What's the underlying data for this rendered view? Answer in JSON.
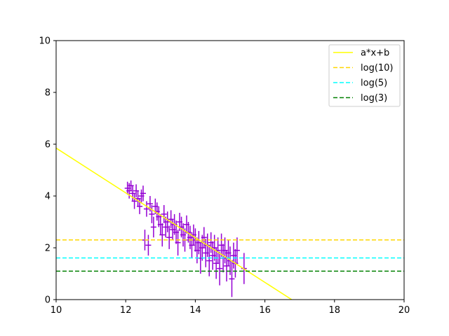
{
  "chart_data": {
    "type": "scatter",
    "title": "",
    "xlabel": "",
    "ylabel": "",
    "xlim": [
      10,
      20
    ],
    "ylim": [
      0,
      10
    ],
    "xticks": [
      "10",
      "12",
      "14",
      "16",
      "18",
      "20"
    ],
    "yticks": [
      "0",
      "2",
      "4",
      "6",
      "8",
      "10"
    ],
    "grid": false,
    "legend_placement": "top-right",
    "series": [
      {
        "name": "a*x+b",
        "kind": "line",
        "style": "solid",
        "color": "#ffff00",
        "x": [
          10,
          16.77
        ],
        "y": [
          5.85,
          0
        ]
      },
      {
        "name": "log(10)",
        "kind": "hline",
        "style": "dashed",
        "color": "#ffd700",
        "y": 2.303
      },
      {
        "name": "log(5)",
        "kind": "hline",
        "style": "dashed",
        "color": "#00ffff",
        "y": 1.609
      },
      {
        "name": "log(3)",
        "kind": "hline",
        "style": "dashed",
        "color": "#008000",
        "y": 1.099
      }
    ],
    "errorbar_points": {
      "color": "#9400d3",
      "points": [
        [
          12.05,
          4.3,
          0.25
        ],
        [
          12.1,
          4.2,
          0.3
        ],
        [
          12.15,
          4.4,
          0.2
        ],
        [
          12.2,
          4.1,
          0.3
        ],
        [
          12.25,
          3.8,
          0.3
        ],
        [
          12.3,
          4.2,
          0.25
        ],
        [
          12.35,
          3.9,
          0.3
        ],
        [
          12.4,
          3.6,
          0.3
        ],
        [
          12.45,
          4.0,
          0.25
        ],
        [
          12.5,
          4.1,
          0.3
        ],
        [
          12.55,
          2.3,
          0.4
        ],
        [
          12.6,
          3.5,
          0.3
        ],
        [
          12.65,
          2.1,
          0.4
        ],
        [
          12.7,
          3.7,
          0.3
        ],
        [
          12.75,
          3.3,
          0.35
        ],
        [
          12.8,
          2.8,
          0.4
        ],
        [
          12.85,
          3.6,
          0.3
        ],
        [
          12.9,
          3.4,
          0.35
        ],
        [
          12.95,
          3.2,
          0.4
        ],
        [
          13.0,
          2.9,
          0.4
        ],
        [
          13.05,
          2.5,
          0.45
        ],
        [
          13.1,
          3.3,
          0.35
        ],
        [
          13.15,
          2.8,
          0.4
        ],
        [
          13.2,
          3.0,
          0.4
        ],
        [
          13.25,
          2.4,
          0.45
        ],
        [
          13.3,
          3.1,
          0.35
        ],
        [
          13.35,
          2.7,
          0.4
        ],
        [
          13.4,
          2.9,
          0.4
        ],
        [
          13.45,
          2.6,
          0.45
        ],
        [
          13.5,
          2.2,
          0.5
        ],
        [
          13.55,
          3.0,
          0.35
        ],
        [
          13.6,
          2.8,
          0.4
        ],
        [
          13.65,
          2.5,
          0.45
        ],
        [
          13.7,
          2.3,
          0.45
        ],
        [
          13.75,
          2.9,
          0.35
        ],
        [
          13.8,
          2.6,
          0.4
        ],
        [
          13.85,
          2.4,
          0.45
        ],
        [
          13.9,
          2.1,
          0.5
        ],
        [
          13.95,
          2.5,
          0.4
        ],
        [
          14.0,
          2.3,
          0.45
        ],
        [
          14.05,
          1.9,
          0.5
        ],
        [
          14.1,
          2.2,
          0.45
        ],
        [
          14.15,
          1.6,
          0.6
        ],
        [
          14.2,
          2.0,
          0.5
        ],
        [
          14.25,
          2.4,
          0.4
        ],
        [
          14.3,
          1.8,
          0.55
        ],
        [
          14.35,
          2.1,
          0.45
        ],
        [
          14.4,
          1.5,
          0.6
        ],
        [
          14.45,
          2.2,
          0.4
        ],
        [
          14.5,
          1.7,
          0.55
        ],
        [
          14.55,
          2.0,
          0.5
        ],
        [
          14.6,
          1.4,
          0.6
        ],
        [
          14.65,
          1.9,
          0.5
        ],
        [
          14.7,
          1.2,
          0.65
        ],
        [
          14.75,
          2.1,
          0.45
        ],
        [
          14.8,
          1.6,
          0.55
        ],
        [
          14.85,
          1.9,
          0.5
        ],
        [
          14.9,
          1.3,
          0.6
        ],
        [
          14.95,
          1.8,
          0.5
        ],
        [
          15.0,
          1.5,
          0.55
        ],
        [
          15.05,
          0.8,
          0.7
        ],
        [
          15.1,
          1.7,
          0.5
        ],
        [
          15.15,
          1.4,
          0.55
        ],
        [
          15.2,
          1.9,
          0.5
        ],
        [
          15.4,
          1.2,
          0.6
        ]
      ]
    }
  }
}
